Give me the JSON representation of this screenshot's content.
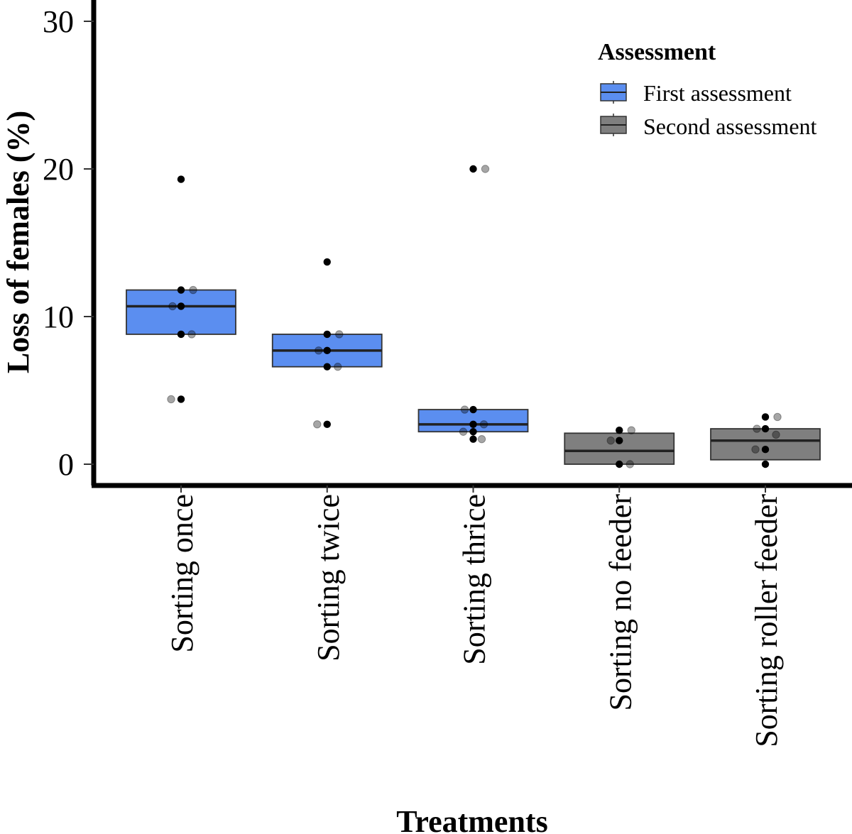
{
  "chart_data": {
    "type": "box",
    "title": "",
    "xlabel": "Treatments",
    "ylabel": "Loss of females (%)",
    "ylim": [
      -1.2,
      31.5
    ],
    "yticks": [
      0,
      10,
      20,
      30
    ],
    "grid": false,
    "categories": [
      "Sorting once",
      "Sorting twice",
      "Sorting thrice",
      "Sorting no feeder",
      "Sorting roller feeder"
    ],
    "legend": {
      "title": "Assessment",
      "position": "top-right",
      "entries": [
        {
          "label": "First assessment",
          "color": "#5b8ef0"
        },
        {
          "label": "Second assessment",
          "color": "#7f7f7f"
        }
      ]
    },
    "boxes": [
      {
        "category": "Sorting once",
        "series": "First assessment",
        "q1": 8.8,
        "median": 10.7,
        "q3": 11.8
      },
      {
        "category": "Sorting twice",
        "series": "First assessment",
        "q1": 6.6,
        "median": 7.7,
        "q3": 8.8
      },
      {
        "category": "Sorting thrice",
        "series": "First assessment",
        "q1": 2.2,
        "median": 2.7,
        "q3": 3.7
      },
      {
        "category": "Sorting no feeder",
        "series": "Second assessment",
        "q1": 0.0,
        "median": 0.9,
        "q3": 2.1
      },
      {
        "category": "Sorting roller feeder",
        "series": "Second assessment",
        "q1": 0.3,
        "median": 1.6,
        "q3": 2.4
      }
    ],
    "points": [
      {
        "category": "Sorting once",
        "solid": [
          19.3,
          11.8,
          10.7,
          8.8,
          4.4
        ],
        "faded": [
          11.8,
          10.7,
          8.8,
          4.4
        ]
      },
      {
        "category": "Sorting twice",
        "solid": [
          13.7,
          8.8,
          7.7,
          6.6,
          2.7
        ],
        "faded": [
          8.8,
          7.7,
          6.6,
          2.7
        ]
      },
      {
        "category": "Sorting thrice",
        "solid": [
          20.0,
          3.7,
          2.7,
          2.2,
          1.7
        ],
        "faded": [
          20.0,
          3.7,
          2.7,
          2.2,
          1.7
        ]
      },
      {
        "category": "Sorting no feeder",
        "solid": [
          2.3,
          1.6,
          0.0
        ],
        "faded": [
          2.3,
          1.6,
          0.0
        ]
      },
      {
        "category": "Sorting roller feeder",
        "solid": [
          3.2,
          2.4,
          1.0,
          0.0
        ],
        "faded": [
          3.2,
          2.4,
          2.0,
          1.0
        ]
      }
    ]
  }
}
